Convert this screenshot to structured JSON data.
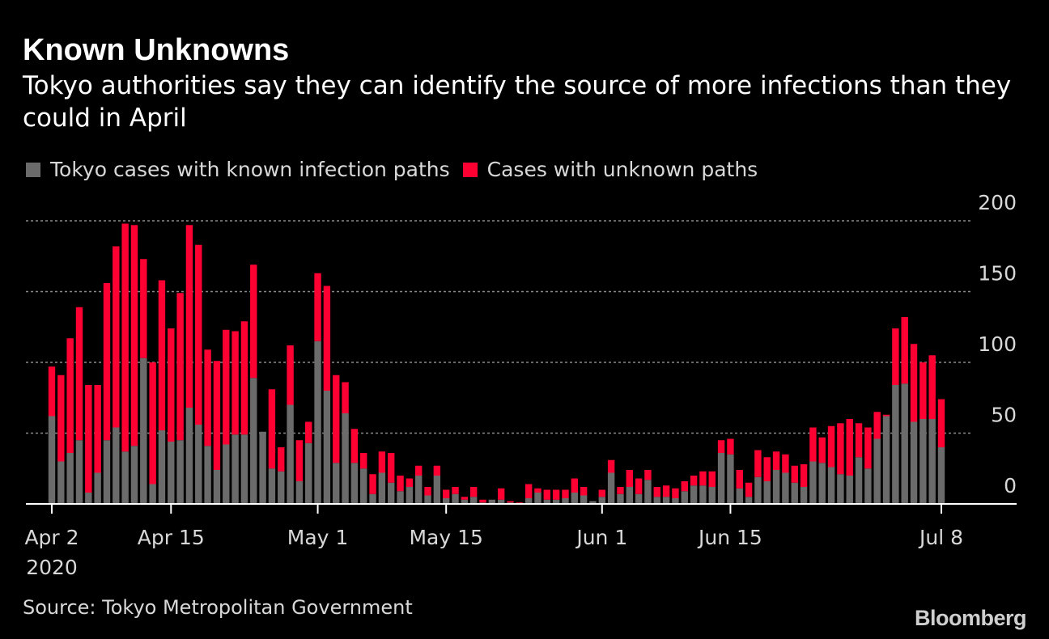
{
  "title": "Known Unknowns",
  "subtitle": "Tokyo authorities say they can identify the source of more infections than they could in April",
  "source": "Source: Tokyo Metropolitan Government",
  "brand": "Bloomberg",
  "colors": {
    "known": "#6b6b6b",
    "unknown": "#ff0033",
    "grid": "#8a8a8a",
    "axis": "#ffffff",
    "text": "#d8d8d8"
  },
  "chart_data": {
    "type": "bar",
    "stacked": true,
    "title": "Known Unknowns",
    "xlabel": "",
    "ylabel": "",
    "ylim": [
      0,
      200
    ],
    "yticks": [
      0,
      50,
      100,
      150,
      200
    ],
    "xtick_labels": [
      {
        "day": 0,
        "label": "Apr 2",
        "sub": "2020"
      },
      {
        "day": 13,
        "label": "Apr 15"
      },
      {
        "day": 29,
        "label": "May 1"
      },
      {
        "day": 43,
        "label": "May 15"
      },
      {
        "day": 60,
        "label": "Jun 1"
      },
      {
        "day": 74,
        "label": "Jun 15"
      },
      {
        "day": 97,
        "label": "Jul 8"
      }
    ],
    "legend": [
      {
        "key": "known",
        "label": "Tokyo cases with known infection paths"
      },
      {
        "key": "unknown",
        "label": "Cases with unknown paths"
      }
    ],
    "series": [
      {
        "name": "Tokyo cases with known infection paths",
        "key": "known",
        "values": [
          62,
          30,
          36,
          45,
          8,
          22,
          45,
          54,
          37,
          41,
          103,
          14,
          52,
          44,
          45,
          68,
          56,
          41,
          24,
          42,
          49,
          49,
          89,
          51,
          25,
          23,
          70,
          16,
          43,
          115,
          80,
          29,
          64,
          29,
          25,
          7,
          22,
          15,
          9,
          12,
          20,
          6,
          20,
          4,
          7,
          3,
          5,
          1,
          3,
          3,
          1,
          0,
          4,
          8,
          3,
          3,
          4,
          8,
          6,
          2,
          5,
          22,
          7,
          12,
          7,
          17,
          5,
          5,
          4,
          9,
          13,
          13,
          12,
          36,
          35,
          11,
          5,
          19,
          16,
          24,
          22,
          15,
          12,
          30,
          29,
          26,
          21,
          20,
          33,
          25,
          46,
          62,
          84,
          85,
          58,
          60,
          60,
          40
        ]
      },
      {
        "name": "Cases with unknown paths",
        "key": "unknown",
        "values": [
          35,
          61,
          81,
          94,
          76,
          62,
          111,
          128,
          161,
          156,
          70,
          86,
          106,
          80,
          104,
          129,
          127,
          68,
          77,
          81,
          73,
          80,
          80,
          0,
          56,
          17,
          42,
          29,
          15,
          48,
          74,
          62,
          22,
          24,
          11,
          14,
          15,
          21,
          11,
          6,
          7,
          6,
          7,
          6,
          5,
          2,
          7,
          2,
          0,
          8,
          1,
          1,
          10,
          3,
          7,
          7,
          6,
          10,
          6,
          0,
          5,
          9,
          5,
          12,
          11,
          7,
          7,
          8,
          7,
          7,
          7,
          10,
          11,
          9,
          11,
          13,
          10,
          19,
          17,
          13,
          13,
          12,
          16,
          24,
          18,
          29,
          36,
          40,
          24,
          29,
          19,
          1,
          40,
          47,
          55,
          40,
          45,
          34
        ]
      }
    ]
  }
}
